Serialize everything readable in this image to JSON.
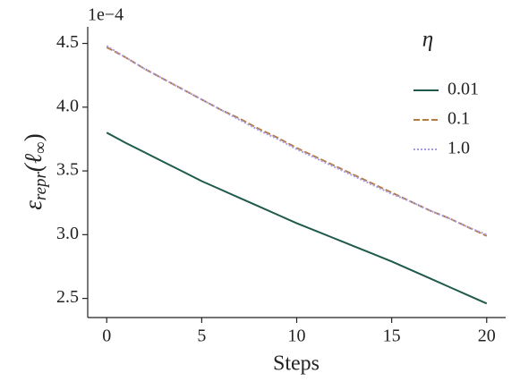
{
  "chart_data": {
    "type": "line",
    "offset_label": "1e−4",
    "x_label": "Steps",
    "y_label": [
      "ε",
      "repr",
      "(ℓ",
      "∞",
      ")"
    ],
    "legend_title": "η",
    "legend_position": "upper right",
    "x": [
      0,
      1,
      2,
      3,
      4,
      5,
      6,
      7,
      8,
      9,
      10,
      11,
      12,
      13,
      14,
      15,
      16,
      17,
      18,
      19,
      20
    ],
    "series": [
      {
        "name": "0.01",
        "color": "#1f5a4c",
        "dash": "solid",
        "values": [
          3.8,
          3.72,
          3.645,
          3.57,
          3.495,
          3.42,
          3.354,
          3.288,
          3.222,
          3.156,
          3.09,
          3.03,
          2.97,
          2.91,
          2.85,
          2.79,
          2.724,
          2.658,
          2.592,
          2.526,
          2.46
        ]
      },
      {
        "name": "0.1",
        "color": "#b27b45",
        "dash": "dashed",
        "values": [
          4.47,
          4.39,
          4.3,
          4.22,
          4.14,
          4.06,
          3.98,
          3.91,
          3.83,
          3.76,
          3.68,
          3.61,
          3.54,
          3.47,
          3.4,
          3.33,
          3.26,
          3.19,
          3.13,
          3.06,
          2.99
        ]
      },
      {
        "name": "1.0",
        "color": "#a99be2",
        "dash": "dotted",
        "values": [
          4.48,
          4.39,
          4.3,
          4.22,
          4.14,
          4.06,
          3.98,
          3.9,
          3.82,
          3.75,
          3.67,
          3.6,
          3.53,
          3.46,
          3.39,
          3.32,
          3.26,
          3.19,
          3.13,
          3.06,
          3.0
        ]
      }
    ],
    "xlim": [
      -1,
      21
    ],
    "xticks": [
      0,
      5,
      10,
      15,
      20
    ],
    "ylim": [
      2.35,
      4.63
    ],
    "yticks": [
      2.5,
      {
        "value": 3,
        "label": "3.0"
      },
      3.5,
      {
        "value": 4,
        "label": "4.0"
      },
      4.5
    ],
    "grid": false
  }
}
